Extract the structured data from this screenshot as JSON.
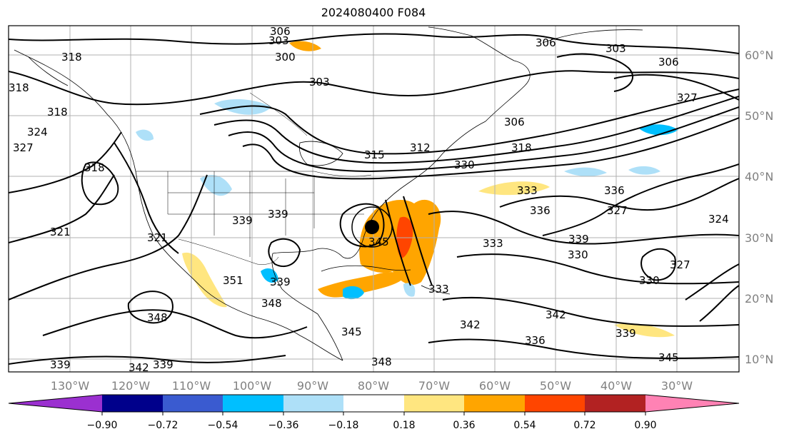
{
  "title": "2024080400 F084",
  "map": {
    "lon_labels": [
      "130°W",
      "120°W",
      "110°W",
      "100°W",
      "90°W",
      "80°W",
      "70°W",
      "60°W",
      "50°W",
      "40°W",
      "30°W"
    ],
    "lat_labels": [
      "60°N",
      "50°N",
      "40°N",
      "30°N",
      "20°N",
      "10°N"
    ],
    "grid": true,
    "contour_labels": [
      "306",
      "303",
      "300",
      "303",
      "306",
      "303",
      "306",
      "327",
      "318",
      "318",
      "324",
      "327",
      "318",
      "318",
      "306",
      "312",
      "315",
      "318",
      "330",
      "333",
      "336",
      "327",
      "324",
      "321",
      "321",
      "339",
      "339",
      "333",
      "330",
      "339",
      "336",
      "327",
      "330",
      "342",
      "339",
      "336",
      "345",
      "351",
      "348",
      "348",
      "339",
      "339",
      "342",
      "339",
      "345",
      "348",
      "345",
      "333",
      "342"
    ]
  },
  "colorbar": {
    "ticks": [
      "−0.90",
      "−0.72",
      "−0.54",
      "−0.36",
      "−0.18",
      "0.18",
      "0.36",
      "0.54",
      "0.72",
      "0.90"
    ],
    "colors": [
      "#9b30d0",
      "#00008b",
      "#3a5bd0",
      "#00bfff",
      "#aee0f8",
      "#ffffff",
      "#ffe680",
      "#ffa500",
      "#ff4500",
      "#b22222",
      "#ff82b4"
    ]
  }
}
